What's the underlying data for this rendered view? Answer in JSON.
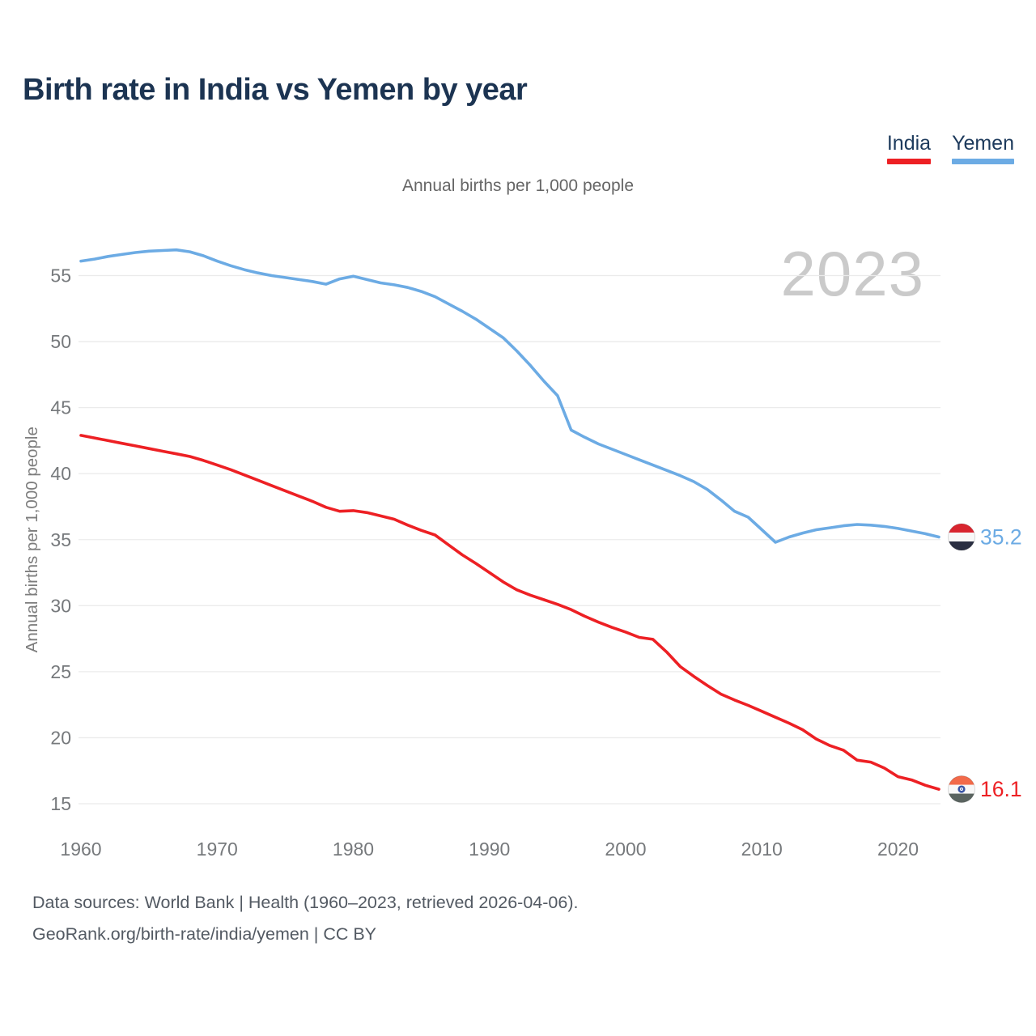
{
  "header": {
    "title": "Birth rate in India vs Yemen by year",
    "legend": [
      {
        "label": "India",
        "color": "#ed2024"
      },
      {
        "label": "Yemen",
        "color": "#6cabe4"
      }
    ]
  },
  "subtitle": "Annual births per 1,000 people",
  "watermark": "2023",
  "footer": {
    "line1": "Data sources: World Bank | Health (1960–2023, retrieved 2026-04-06).",
    "line2": "GeoRank.org/birth-rate/india/yemen | CC BY"
  },
  "chart_data": {
    "type": "line",
    "title": "Birth rate in India vs Yemen by year",
    "subtitle": "Annual births per 1,000 people",
    "ylabel": "Annual births per 1,000 people",
    "xlabel": "",
    "grid": true,
    "legend_position": "top-right",
    "watermark": "2023",
    "ylim": [
      13.5,
      58.5
    ],
    "y_ticks": [
      15,
      20,
      25,
      30,
      35,
      40,
      45,
      50,
      55
    ],
    "x_ticks": [
      1960,
      1970,
      1980,
      1990,
      2000,
      2010,
      2020
    ],
    "x": [
      1960,
      1961,
      1962,
      1963,
      1964,
      1965,
      1966,
      1967,
      1968,
      1969,
      1970,
      1971,
      1972,
      1973,
      1974,
      1975,
      1976,
      1977,
      1978,
      1979,
      1980,
      1981,
      1982,
      1983,
      1984,
      1985,
      1986,
      1987,
      1988,
      1989,
      1990,
      1991,
      1992,
      1993,
      1994,
      1995,
      1996,
      1997,
      1998,
      1999,
      2000,
      2001,
      2002,
      2003,
      2004,
      2005,
      2006,
      2007,
      2008,
      2009,
      2010,
      2011,
      2012,
      2013,
      2014,
      2015,
      2016,
      2017,
      2018,
      2019,
      2020,
      2021,
      2022,
      2023
    ],
    "series": [
      {
        "name": "India",
        "color": "#ed2024",
        "end_label": "16.1",
        "flag": "india",
        "values": [
          42.9,
          42.7,
          42.5,
          42.3,
          42.1,
          41.9,
          41.7,
          41.5,
          41.3,
          41.0,
          40.65,
          40.3,
          39.9,
          39.5,
          39.1,
          38.7,
          38.3,
          37.9,
          37.45,
          37.15,
          37.2,
          37.05,
          36.8,
          36.55,
          36.1,
          35.7,
          35.35,
          34.6,
          33.85,
          33.2,
          32.5,
          31.8,
          31.2,
          30.8,
          30.45,
          30.1,
          29.7,
          29.2,
          28.75,
          28.35,
          28.0,
          27.6,
          27.45,
          26.5,
          25.4,
          24.65,
          23.95,
          23.3,
          22.85,
          22.45,
          22.0,
          21.55,
          21.1,
          20.6,
          19.9,
          19.4,
          19.05,
          18.3,
          18.15,
          17.7,
          17.05,
          16.8,
          16.4,
          16.1
        ]
      },
      {
        "name": "Yemen",
        "color": "#6cabe4",
        "end_label": "35.2",
        "flag": "yemen",
        "values": [
          56.1,
          56.25,
          56.45,
          56.6,
          56.75,
          56.85,
          56.9,
          56.95,
          56.8,
          56.5,
          56.1,
          55.75,
          55.45,
          55.2,
          55.0,
          54.85,
          54.7,
          54.55,
          54.35,
          54.75,
          54.95,
          54.7,
          54.45,
          54.3,
          54.1,
          53.8,
          53.4,
          52.85,
          52.3,
          51.7,
          51.0,
          50.3,
          49.3,
          48.2,
          47.0,
          45.9,
          43.3,
          42.75,
          42.25,
          41.85,
          41.45,
          41.05,
          40.65,
          40.25,
          39.85,
          39.4,
          38.8,
          38.0,
          37.15,
          36.7,
          35.75,
          34.8,
          35.2,
          35.5,
          35.75,
          35.9,
          36.05,
          36.15,
          36.1,
          36.0,
          35.85,
          35.65,
          35.45,
          35.2
        ]
      }
    ],
    "flag_colors": {
      "india": {
        "top": "#f26a4a",
        "mid": "#f8f8f8",
        "bottom": "#5a6460",
        "chakra": "#3a55a4"
      },
      "yemen": {
        "top": "#d8252f",
        "mid": "#f8f8f8",
        "bottom": "#2a2f42"
      }
    }
  }
}
